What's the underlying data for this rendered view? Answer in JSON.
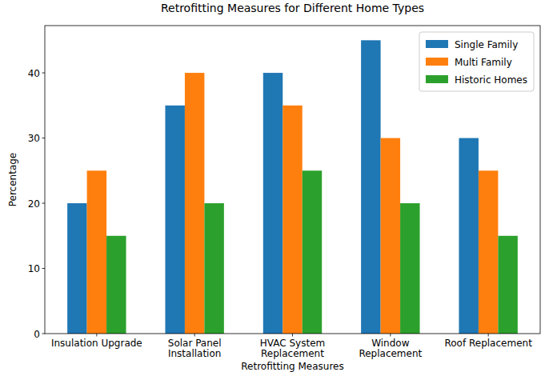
{
  "chart_data": {
    "type": "bar",
    "title": "Retrofitting Measures for Different Home Types",
    "x_label": "Retrofitting Measures",
    "y_label": "Percentage",
    "categories": [
      "Insulation Upgrade",
      "Solar Panel Installation",
      "HVAC System Replacement",
      "Window Replacement",
      "Roof Replacement"
    ],
    "series": [
      {
        "name": "Single Family",
        "color": "#1f77b4",
        "values": [
          20,
          35,
          40,
          45,
          30
        ]
      },
      {
        "name": "Multi Family",
        "color": "#ff7f0e",
        "values": [
          25,
          40,
          35,
          30,
          25
        ]
      },
      {
        "name": "Historic Homes",
        "color": "#2ca02c",
        "values": [
          15,
          20,
          25,
          20,
          15
        ]
      }
    ],
    "ylim": [
      0,
      47.25
    ],
    "yticks": [
      0,
      10,
      20,
      30,
      40
    ],
    "grid": false,
    "legend": "upper right"
  }
}
